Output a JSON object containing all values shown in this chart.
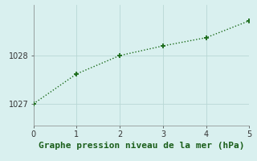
{
  "x": [
    0,
    1,
    2,
    3,
    4,
    5
  ],
  "y": [
    1027.0,
    1027.62,
    1028.0,
    1028.2,
    1028.37,
    1028.72
  ],
  "line_color": "#1a6b1a",
  "marker_color": "#1a6b1a",
  "bg_color": "#d9f0ef",
  "grid_color": "#b8d8d5",
  "axis_color": "#888888",
  "xlabel": "Graphe pression niveau de la mer (hPa)",
  "xlabel_color": "#1a5e1a",
  "xlim": [
    0,
    5
  ],
  "ylim": [
    1026.55,
    1029.05
  ],
  "yticks": [
    1027,
    1028
  ],
  "xticks": [
    0,
    1,
    2,
    3,
    4,
    5
  ],
  "tick_fontsize": 7,
  "xlabel_fontsize": 8,
  "line_width": 1.0,
  "marker_size": 5
}
